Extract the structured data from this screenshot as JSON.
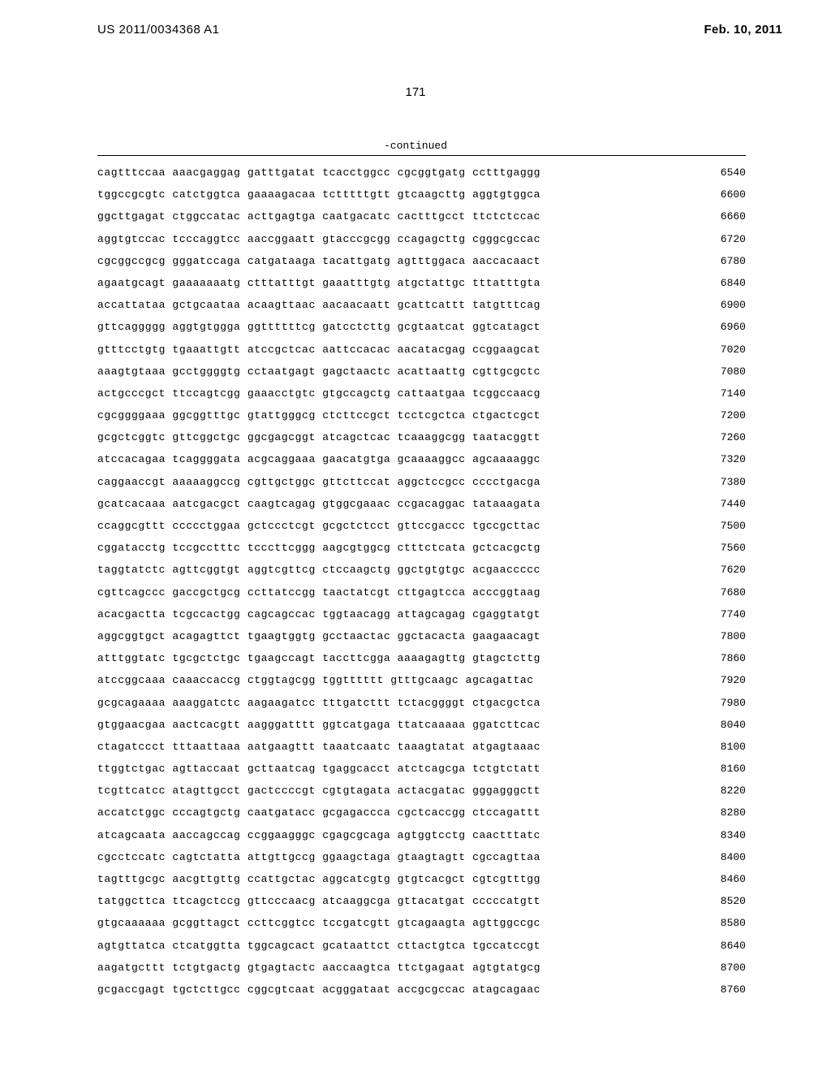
{
  "header": {
    "doc_number": "US 2011/0034368 A1",
    "doc_date": "Feb. 10, 2011"
  },
  "page_number": "171",
  "continued_label": "-continued",
  "sequence": {
    "rows": [
      {
        "seq": "cagtttccaa aaacgaggag gatttgatat tcacctggcc cgcggtgatg cctttgaggg",
        "pos": "6540"
      },
      {
        "seq": "tggccgcgtc catctggtca gaaaagacaa tctttttgtt gtcaagcttg aggtgtggca",
        "pos": "6600"
      },
      {
        "seq": "ggcttgagat ctggccatac acttgagtga caatgacatc cactttgcct ttctctccac",
        "pos": "6660"
      },
      {
        "seq": "aggtgtccac tcccaggtcc aaccggaatt gtacccgcgg ccagagcttg cgggcgccac",
        "pos": "6720"
      },
      {
        "seq": "cgcggccgcg gggatccaga catgataaga tacattgatg agtttggaca aaccacaact",
        "pos": "6780"
      },
      {
        "seq": "agaatgcagt gaaaaaaatg ctttatttgt gaaatttgtg atgctattgc tttatttgta",
        "pos": "6840"
      },
      {
        "seq": "accattataa gctgcaataa acaagttaac aacaacaatt gcattcattt tatgtttcag",
        "pos": "6900"
      },
      {
        "seq": "gttcaggggg aggtgtggga ggttttttcg gatcctcttg gcgtaatcat ggtcatagct",
        "pos": "6960"
      },
      {
        "seq": "gtttcctgtg tgaaattgtt atccgctcac aattccacac aacatacgag ccggaagcat",
        "pos": "7020"
      },
      {
        "seq": "aaagtgtaaa gcctggggtg cctaatgagt gagctaactc acattaattg cgttgcgctc",
        "pos": "7080"
      },
      {
        "seq": "actgcccgct ttccagtcgg gaaacctgtc gtgccagctg cattaatgaa tcggccaacg",
        "pos": "7140"
      },
      {
        "seq": "cgcggggaaa ggcggtttgc gtattgggcg ctcttccgct tcctcgctca ctgactcgct",
        "pos": "7200"
      },
      {
        "seq": "gcgctcggtc gttcggctgc ggcgagcggt atcagctcac tcaaaggcgg taatacggtt",
        "pos": "7260"
      },
      {
        "seq": "atccacagaa tcaggggata acgcaggaaa gaacatgtga gcaaaaggcc agcaaaaggc",
        "pos": "7320"
      },
      {
        "seq": "caggaaccgt aaaaaggccg cgttgctggc gttcttccat aggctccgcc cccctgacga",
        "pos": "7380"
      },
      {
        "seq": "gcatcacaaa aatcgacgct caagtcagag gtggcgaaac ccgacaggac tataaagata",
        "pos": "7440"
      },
      {
        "seq": "ccaggcgttt ccccctggaa gctccctcgt gcgctctcct gttccgaccc tgccgcttac",
        "pos": "7500"
      },
      {
        "seq": "cggatacctg tccgcctttc tcccttcggg aagcgtggcg ctttctcata gctcacgctg",
        "pos": "7560"
      },
      {
        "seq": "taggtatctc agttcggtgt aggtcgttcg ctccaagctg ggctgtgtgc acgaaccccc",
        "pos": "7620"
      },
      {
        "seq": "cgttcagccc gaccgctgcg ccttatccgg taactatcgt cttgagtcca acccggtaag",
        "pos": "7680"
      },
      {
        "seq": "acacgactta tcgccactgg cagcagccac tggtaacagg attagcagag cgaggtatgt",
        "pos": "7740"
      },
      {
        "seq": "aggcggtgct acagagttct tgaagtggtg gcctaactac ggctacacta gaagaacagt",
        "pos": "7800"
      },
      {
        "seq": "atttggtatc tgcgctctgc tgaagccagt taccttcgga aaaagagttg gtagctcttg",
        "pos": "7860"
      },
      {
        "seq": "atccggcaaa caaaccaccg ctggtagcgg tggtttttt gtttgcaagc agcagattac",
        "pos": "7920"
      },
      {
        "seq": "gcgcagaaaa aaaggatctc aagaagatcc tttgatcttt tctacggggt ctgacgctca",
        "pos": "7980"
      },
      {
        "seq": "gtggaacgaa aactcacgtt aagggatttt ggtcatgaga ttatcaaaaa ggatcttcac",
        "pos": "8040"
      },
      {
        "seq": "ctagatccct tttaattaaa aatgaagttt taaatcaatc taaagtatat atgagtaaac",
        "pos": "8100"
      },
      {
        "seq": "ttggtctgac agttaccaat gcttaatcag tgaggcacct atctcagcga tctgtctatt",
        "pos": "8160"
      },
      {
        "seq": "tcgttcatcc atagttgcct gactccccgt cgtgtagata actacgatac gggagggctt",
        "pos": "8220"
      },
      {
        "seq": "accatctggc cccagtgctg caatgatacc gcgagaccca cgctcaccgg ctccagattt",
        "pos": "8280"
      },
      {
        "seq": "atcagcaata aaccagccag ccggaagggc cgagcgcaga agtggtcctg caactttatc",
        "pos": "8340"
      },
      {
        "seq": "cgcctccatc cagtctatta attgttgccg ggaagctaga gtaagtagtt cgccagttaa",
        "pos": "8400"
      },
      {
        "seq": "tagtttgcgc aacgttgttg ccattgctac aggcatcgtg gtgtcacgct cgtcgtttgg",
        "pos": "8460"
      },
      {
        "seq": "tatggcttca ttcagctccg gttcccaacg atcaaggcga gttacatgat cccccatgtt",
        "pos": "8520"
      },
      {
        "seq": "gtgcaaaaaa gcggttagct ccttcggtcc tccgatcgtt gtcagaagta agttggccgc",
        "pos": "8580"
      },
      {
        "seq": "agtgttatca ctcatggtta tggcagcact gcataattct cttactgtca tgccatccgt",
        "pos": "8640"
      },
      {
        "seq": "aagatgcttt tctgtgactg gtgagtactc aaccaagtca ttctgagaat agtgtatgcg",
        "pos": "8700"
      },
      {
        "seq": "gcgaccgagt tgctcttgcc cggcgtcaat acgggataat accgcgccac atagcagaac",
        "pos": "8760"
      }
    ]
  }
}
